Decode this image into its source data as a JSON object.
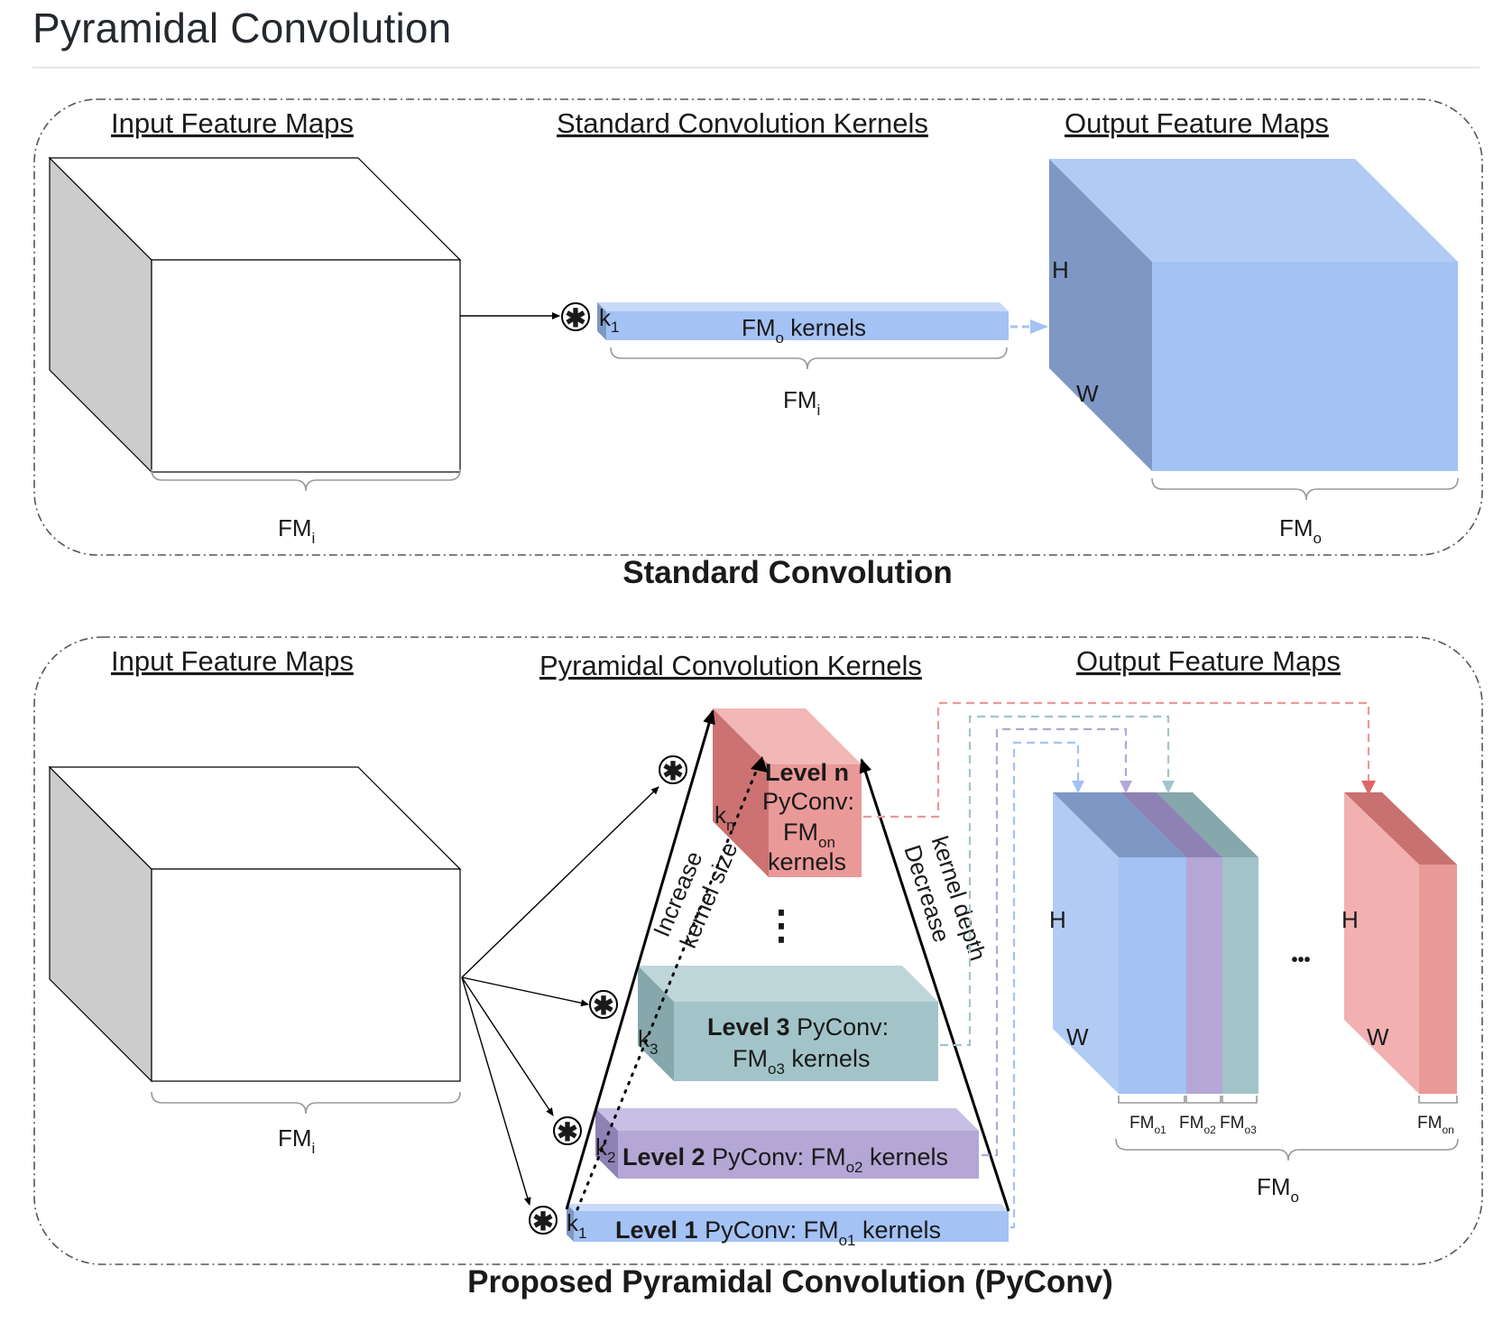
{
  "page_title": "Pyramidal Convolution",
  "standard": {
    "header_input": "Input Feature Maps",
    "header_kernels": "Standard Convolution Kernels",
    "header_output": "Output Feature Maps",
    "kernel_k": "k",
    "kernel_k_sub": "1",
    "kernel_text_a": "FM",
    "kernel_text_sub": "o",
    "kernel_text_b": " kernels",
    "kernel_brace_fm": "FM",
    "kernel_brace_sub": "i",
    "input_brace_fm": "FM",
    "input_brace_sub": "i",
    "output_h": "H",
    "output_w": "W",
    "output_brace_fm": "FM",
    "output_brace_sub": "o",
    "caption": "Standard Convolution",
    "conv_symbol": "✱"
  },
  "pyconv": {
    "header_input": "Input Feature Maps",
    "header_kernels": "Pyramidal Convolution Kernels",
    "header_output": "Output Feature Maps",
    "input_brace_fm": "FM",
    "input_brace_sub": "i",
    "level_n_title": "Level n",
    "level_n_line2": "PyConv:",
    "level_n_fm": "FM",
    "level_n_fm_sub": "on",
    "level_n_kernels": "kernels",
    "level_n_k": "k",
    "level_n_k_sub": "n",
    "vertical_dots": "⋮",
    "level3_bold": "Level 3",
    "level3_rest": " PyConv:",
    "level3_fm": "FM",
    "level3_fm_sub": "o3",
    "level3_kernels": " kernels",
    "level3_k": "k",
    "level3_k_sub": "3",
    "level2_bold": "Level 2",
    "level2_rest": " PyConv: FM",
    "level2_fm_sub": "o2",
    "level2_kernels": " kernels",
    "level2_k": "k",
    "level2_k_sub": "2",
    "level1_bold": "Level 1",
    "level1_rest": " PyConv: FM",
    "level1_fm_sub": "o1",
    "level1_kernels": " kernels",
    "level1_k": "k",
    "level1_k_sub": "1",
    "increase_line1": "Increase",
    "increase_line2": "kernel size",
    "decrease_line1": "Decrease",
    "decrease_line2": "kernel depth",
    "out_h1": "H",
    "out_w1": "W",
    "out_h2": "H",
    "out_w2": "W",
    "ellipsis": "•••",
    "fm_o1": "FM",
    "fm_o1_sub": "o1",
    "fm_o2": "FM",
    "fm_o2_sub": "o2",
    "fm_o3": "FM",
    "fm_o3_sub": "o3",
    "fm_on": "FM",
    "fm_on_sub": "on",
    "total_fm": "FM",
    "total_fm_sub": "o",
    "caption": "Proposed Pyramidal Convolution (PyConv)",
    "conv_symbol": "✱"
  },
  "colors": {
    "blue_front": "#a4c2f4",
    "blue_top": "#c9daf8",
    "blue_side": "#7f97c4",
    "purple": "#b4a7d6",
    "purple_top": "#c8bfe4",
    "teal": "#a2c4c9",
    "teal_top": "#bed6d9",
    "red": "#ea9999",
    "red_top": "#f2b8b8",
    "gray_side": "#cccccc"
  }
}
